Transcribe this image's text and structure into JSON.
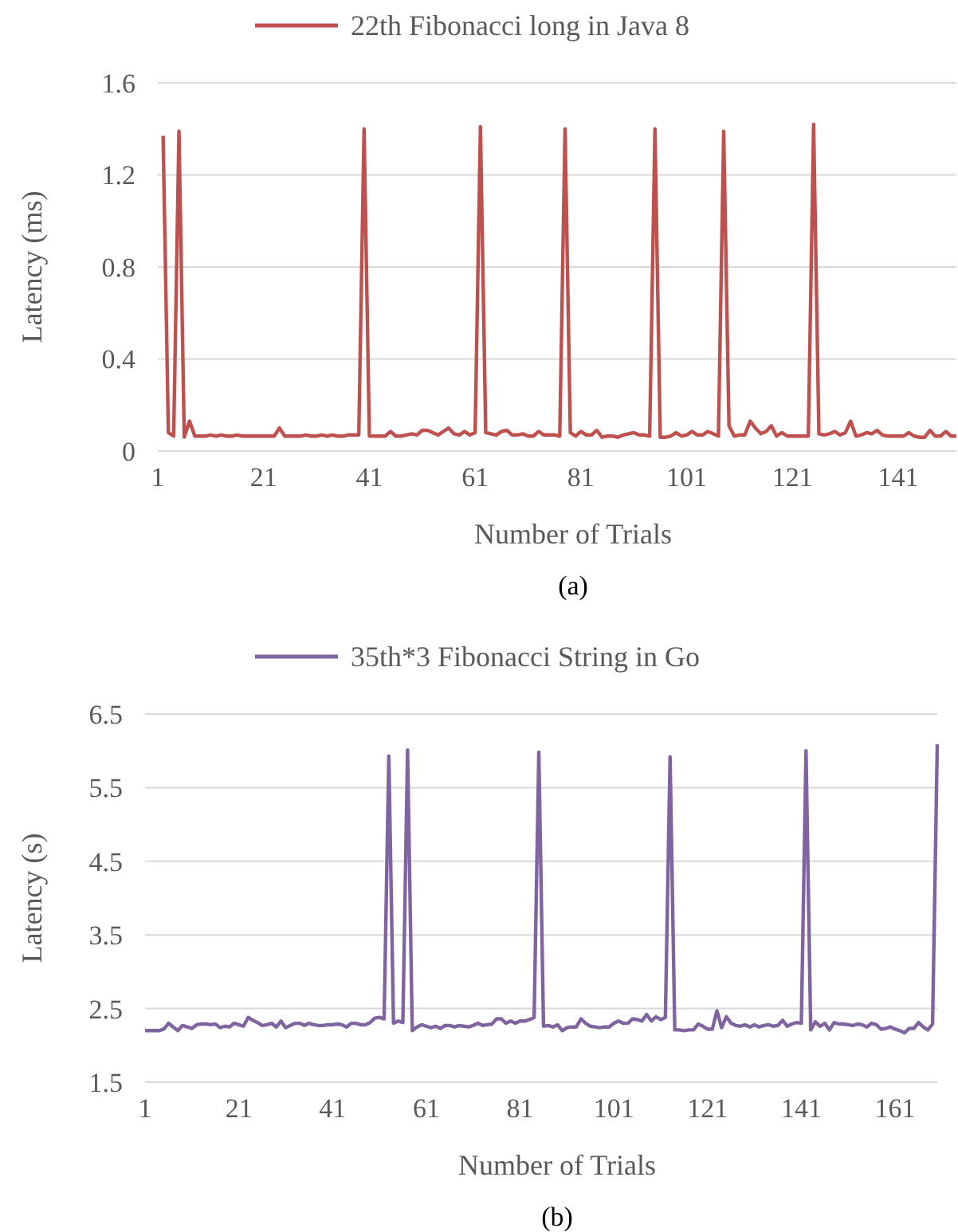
{
  "chart_data": [
    {
      "type": "line",
      "ylabel": "Latency (ms)",
      "xlabel": "Number of Trials",
      "annotations": [
        "(a)"
      ],
      "legend": "top",
      "grid": "y",
      "xlim": [
        1,
        152
      ],
      "xticks": [
        1,
        21,
        41,
        61,
        81,
        101,
        121,
        141
      ],
      "ylim": [
        0,
        1.6
      ],
      "yticks": [
        0,
        0.4,
        0.8,
        1.2,
        1.6
      ],
      "x": [
        2,
        3,
        4,
        5,
        6,
        7,
        8,
        9,
        10,
        11,
        12,
        13,
        14,
        15,
        16,
        17,
        18,
        19,
        20,
        21,
        22,
        23,
        24,
        25,
        26,
        27,
        28,
        29,
        30,
        31,
        32,
        33,
        34,
        35,
        36,
        37,
        38,
        39,
        40,
        41,
        42,
        43,
        44,
        45,
        46,
        47,
        48,
        49,
        50,
        51,
        52,
        53,
        54,
        55,
        56,
        57,
        58,
        59,
        60,
        61,
        62,
        63,
        64,
        65,
        66,
        67,
        68,
        69,
        70,
        71,
        72,
        73,
        74,
        75,
        76,
        77,
        78,
        79,
        80,
        81,
        82,
        83,
        84,
        85,
        86,
        87,
        88,
        89,
        90,
        91,
        92,
        93,
        94,
        95,
        96,
        97,
        98,
        99,
        100,
        101,
        102,
        103,
        104,
        105,
        106,
        107,
        108,
        109,
        110,
        111,
        112,
        113,
        114,
        115,
        116,
        117,
        118,
        119,
        120,
        121,
        122,
        123,
        124,
        125,
        126,
        127,
        128,
        129,
        130,
        131,
        132,
        133,
        134,
        135,
        136,
        137,
        138,
        139,
        140,
        141,
        142,
        143,
        144,
        145,
        146,
        147,
        148,
        149,
        150,
        151,
        152
      ],
      "series": [
        {
          "name": "22th Fibonacci long in Java 8",
          "color": "#c0504d",
          "values": [
            1.37,
            0.08,
            0.065,
            1.39,
            0.06,
            0.13,
            0.065,
            0.065,
            0.065,
            0.07,
            0.065,
            0.07,
            0.065,
            0.065,
            0.07,
            0.065,
            0.065,
            0.065,
            0.065,
            0.065,
            0.065,
            0.065,
            0.1,
            0.065,
            0.065,
            0.065,
            0.065,
            0.07,
            0.065,
            0.065,
            0.07,
            0.065,
            0.07,
            0.065,
            0.065,
            0.07,
            0.07,
            0.07,
            1.4,
            0.065,
            0.065,
            0.065,
            0.065,
            0.085,
            0.065,
            0.065,
            0.07,
            0.075,
            0.07,
            0.09,
            0.09,
            0.08,
            0.07,
            0.085,
            0.1,
            0.075,
            0.07,
            0.085,
            0.07,
            0.08,
            1.41,
            0.08,
            0.075,
            0.07,
            0.085,
            0.09,
            0.07,
            0.07,
            0.075,
            0.065,
            0.065,
            0.085,
            0.07,
            0.07,
            0.07,
            0.065,
            1.4,
            0.08,
            0.065,
            0.085,
            0.07,
            0.07,
            0.09,
            0.06,
            0.065,
            0.065,
            0.06,
            0.07,
            0.075,
            0.08,
            0.07,
            0.07,
            0.065,
            1.4,
            0.06,
            0.06,
            0.065,
            0.08,
            0.065,
            0.07,
            0.085,
            0.07,
            0.07,
            0.085,
            0.075,
            0.065,
            1.39,
            0.11,
            0.065,
            0.07,
            0.07,
            0.13,
            0.1,
            0.075,
            0.085,
            0.11,
            0.065,
            0.08,
            0.065,
            0.065,
            0.065,
            0.065,
            0.065,
            1.42,
            0.075,
            0.07,
            0.075,
            0.085,
            0.07,
            0.08,
            0.13,
            0.065,
            0.07,
            0.08,
            0.075,
            0.09,
            0.07,
            0.065,
            0.065,
            0.065,
            0.065,
            0.08,
            0.065,
            0.06,
            0.06,
            0.09,
            0.065,
            0.065,
            0.085,
            0.065,
            0.065
          ]
        }
      ]
    },
    {
      "type": "line",
      "ylabel": "Latency (s)",
      "xlabel": "Number of Trials",
      "annotations": [
        "(b)"
      ],
      "legend": "top",
      "grid": "y",
      "xlim": [
        1,
        170
      ],
      "xticks": [
        1,
        21,
        41,
        61,
        81,
        101,
        121,
        141,
        161
      ],
      "ylim": [
        1.5,
        6.5
      ],
      "yticks": [
        1.5,
        2.5,
        3.5,
        4.5,
        5.5,
        6.5
      ],
      "x": [
        1,
        2,
        3,
        4,
        5,
        6,
        7,
        8,
        9,
        10,
        11,
        12,
        13,
        14,
        15,
        16,
        17,
        18,
        19,
        20,
        21,
        22,
        23,
        24,
        25,
        26,
        27,
        28,
        29,
        30,
        31,
        32,
        33,
        34,
        35,
        36,
        37,
        38,
        39,
        40,
        41,
        42,
        43,
        44,
        45,
        46,
        47,
        48,
        49,
        50,
        51,
        52,
        53,
        54,
        55,
        56,
        57,
        58,
        59,
        60,
        61,
        62,
        63,
        64,
        65,
        66,
        67,
        68,
        69,
        70,
        71,
        72,
        73,
        74,
        75,
        76,
        77,
        78,
        79,
        80,
        81,
        82,
        83,
        84,
        85,
        86,
        87,
        88,
        89,
        90,
        91,
        92,
        93,
        94,
        95,
        96,
        97,
        98,
        99,
        100,
        101,
        102,
        103,
        104,
        105,
        106,
        107,
        108,
        109,
        110,
        111,
        112,
        113,
        114,
        115,
        116,
        117,
        118,
        119,
        120,
        121,
        122,
        123,
        124,
        125,
        126,
        127,
        128,
        129,
        130,
        131,
        132,
        133,
        134,
        135,
        136,
        137,
        138,
        139,
        140,
        141,
        142,
        143,
        144,
        145,
        146,
        147,
        148,
        149,
        150,
        151,
        152,
        153,
        154,
        155,
        156,
        157,
        158,
        159,
        160,
        161,
        162,
        163,
        164,
        165,
        166,
        167,
        168,
        169,
        170
      ],
      "series": [
        {
          "name": "35th*3 Fibonacci String in Go",
          "color": "#8064a2",
          "values": [
            2.2,
            2.2,
            2.2,
            2.2,
            2.22,
            2.3,
            2.25,
            2.2,
            2.27,
            2.25,
            2.23,
            2.28,
            2.29,
            2.29,
            2.28,
            2.29,
            2.24,
            2.26,
            2.25,
            2.3,
            2.28,
            2.26,
            2.38,
            2.34,
            2.31,
            2.27,
            2.28,
            2.3,
            2.25,
            2.33,
            2.24,
            2.27,
            2.3,
            2.3,
            2.27,
            2.3,
            2.28,
            2.27,
            2.27,
            2.28,
            2.28,
            2.29,
            2.28,
            2.25,
            2.3,
            2.3,
            2.28,
            2.28,
            2.31,
            2.37,
            2.38,
            2.36,
            5.93,
            2.3,
            2.33,
            2.31,
            6.01,
            2.2,
            2.25,
            2.28,
            2.26,
            2.24,
            2.26,
            2.23,
            2.27,
            2.27,
            2.25,
            2.27,
            2.26,
            2.25,
            2.27,
            2.3,
            2.27,
            2.28,
            2.29,
            2.36,
            2.36,
            2.3,
            2.33,
            2.3,
            2.33,
            2.33,
            2.35,
            2.38,
            5.98,
            2.26,
            2.27,
            2.25,
            2.28,
            2.2,
            2.24,
            2.25,
            2.25,
            2.36,
            2.3,
            2.26,
            2.25,
            2.24,
            2.25,
            2.25,
            2.3,
            2.33,
            2.3,
            2.3,
            2.36,
            2.35,
            2.33,
            2.42,
            2.33,
            2.39,
            2.35,
            2.38,
            5.92,
            2.21,
            2.21,
            2.2,
            2.21,
            2.21,
            2.29,
            2.26,
            2.22,
            2.22,
            2.47,
            2.24,
            2.39,
            2.3,
            2.27,
            2.26,
            2.28,
            2.25,
            2.28,
            2.25,
            2.27,
            2.28,
            2.26,
            2.27,
            2.34,
            2.26,
            2.29,
            2.31,
            2.3,
            6.0,
            2.21,
            2.32,
            2.26,
            2.3,
            2.21,
            2.31,
            2.29,
            2.29,
            2.28,
            2.27,
            2.29,
            2.28,
            2.25,
            2.3,
            2.28,
            2.22,
            2.23,
            2.25,
            2.22,
            2.2,
            2.17,
            2.23,
            2.23,
            2.31,
            2.25,
            2.21,
            2.29,
            6.09
          ]
        }
      ]
    }
  ]
}
